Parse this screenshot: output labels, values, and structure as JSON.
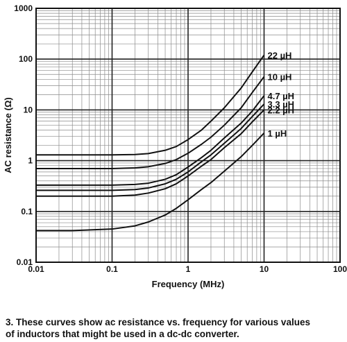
{
  "chart_data": {
    "type": "line",
    "xlabel": "Frequency (MHz)",
    "ylabel": "AC resistance (Ω)",
    "x_scale": "log",
    "y_scale": "log",
    "xlim": [
      0.01,
      100
    ],
    "ylim": [
      0.01,
      1000
    ],
    "grid": true,
    "x_tick_labels": [
      "0.01",
      "0.1",
      "1",
      "10",
      "100"
    ],
    "y_tick_labels": [
      "0.01",
      "0.1",
      "1",
      "10",
      "100",
      "1000"
    ],
    "series": [
      {
        "name": "22 µH",
        "x": [
          0.01,
          0.03,
          0.1,
          0.2,
          0.3,
          0.5,
          0.7,
          1,
          1.5,
          2,
          3,
          5,
          7,
          10
        ],
        "y": [
          1.3,
          1.3,
          1.3,
          1.32,
          1.38,
          1.6,
          1.9,
          2.6,
          4.0,
          6.0,
          11,
          27,
          56,
          120
        ]
      },
      {
        "name": "10 µH",
        "x": [
          0.01,
          0.03,
          0.1,
          0.2,
          0.3,
          0.5,
          0.7,
          1,
          1.5,
          2,
          3,
          5,
          7,
          10
        ],
        "y": [
          0.7,
          0.7,
          0.7,
          0.72,
          0.76,
          0.88,
          1.05,
          1.4,
          2.1,
          2.9,
          5,
          11,
          22,
          45
        ]
      },
      {
        "name": "4.7 µH",
        "x": [
          0.01,
          0.03,
          0.1,
          0.2,
          0.3,
          0.5,
          0.7,
          1,
          1.5,
          2,
          3,
          5,
          7,
          10
        ],
        "y": [
          0.33,
          0.33,
          0.33,
          0.34,
          0.36,
          0.43,
          0.53,
          0.75,
          1.15,
          1.6,
          2.8,
          5.5,
          9.5,
          19
        ]
      },
      {
        "name": "3.3 µH",
        "x": [
          0.01,
          0.03,
          0.1,
          0.2,
          0.3,
          0.5,
          0.7,
          1,
          1.5,
          2,
          3,
          5,
          7,
          10
        ],
        "y": [
          0.26,
          0.26,
          0.26,
          0.27,
          0.29,
          0.35,
          0.43,
          0.6,
          0.95,
          1.3,
          2.2,
          4.3,
          7.4,
          13
        ]
      },
      {
        "name": "2.2 µH",
        "x": [
          0.01,
          0.03,
          0.1,
          0.2,
          0.3,
          0.5,
          0.7,
          1,
          1.5,
          2,
          3,
          5,
          7,
          10
        ],
        "y": [
          0.2,
          0.2,
          0.2,
          0.21,
          0.23,
          0.28,
          0.35,
          0.5,
          0.78,
          1.05,
          1.8,
          3.4,
          5.8,
          10
        ]
      },
      {
        "name": "1 µH",
        "x": [
          0.01,
          0.03,
          0.1,
          0.2,
          0.3,
          0.5,
          0.7,
          1,
          1.5,
          2,
          3,
          5,
          7,
          10
        ],
        "y": [
          0.042,
          0.042,
          0.045,
          0.052,
          0.062,
          0.085,
          0.115,
          0.17,
          0.27,
          0.37,
          0.62,
          1.2,
          2.0,
          3.5
        ]
      }
    ]
  },
  "caption": {
    "line1": "3. These curves show ac resistance vs. frequency for various values",
    "line2": "of inductors that might be used in a dc-dc converter."
  }
}
